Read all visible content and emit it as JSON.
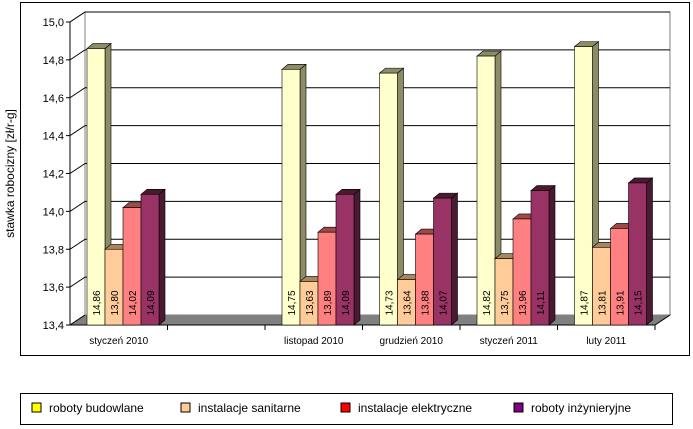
{
  "chart_data": {
    "type": "bar",
    "title": "",
    "xlabel": "",
    "ylabel": "stawka robocizny [zł/r-g]",
    "ylim": [
      13.4,
      15.0
    ],
    "yticks": [
      "13,4",
      "13,6",
      "13,8",
      "14,0",
      "14,2",
      "14,4",
      "14,6",
      "14,8",
      "15,0"
    ],
    "grid": true,
    "legend_position": "bottom",
    "categories": [
      "styczeń 2010",
      "",
      "listopad 2010",
      "grudzień 2010",
      "styczeń 2011",
      "luty 2011"
    ],
    "series": [
      {
        "name": "roboty budowlane",
        "color": "#FFFFCC",
        "side": "#8C8C66",
        "legend_color": "#FFFF00",
        "values": [
          14.86,
          null,
          14.75,
          14.73,
          14.82,
          14.87
        ],
        "labels": [
          "14,86",
          "",
          "14,75",
          "14,73",
          "14,82",
          "14,87"
        ]
      },
      {
        "name": "instalacje sanitarne",
        "color": "#FFCC99",
        "side": "#A88660",
        "legend_color": "#FFCC99",
        "values": [
          13.8,
          null,
          13.63,
          13.64,
          13.75,
          13.81
        ],
        "labels": [
          "13,80",
          "",
          "13,63",
          "13,64",
          "13,75",
          "13,81"
        ]
      },
      {
        "name": "instalacje elektryczne",
        "color": "#FF8080",
        "side": "#A04848",
        "legend_color": "#FF0000",
        "values": [
          14.02,
          null,
          13.89,
          13.88,
          13.96,
          13.91
        ],
        "labels": [
          "14,02",
          "",
          "13,89",
          "13,88",
          "13,96",
          "13,91"
        ]
      },
      {
        "name": "roboty inżynieryjne",
        "color": "#993366",
        "side": "#4A1A30",
        "legend_color": "#800080",
        "values": [
          14.09,
          null,
          14.09,
          14.07,
          14.11,
          14.15
        ],
        "labels": [
          "14,09",
          "",
          "14,09",
          "14,07",
          "14,11",
          "14,15"
        ]
      }
    ]
  }
}
